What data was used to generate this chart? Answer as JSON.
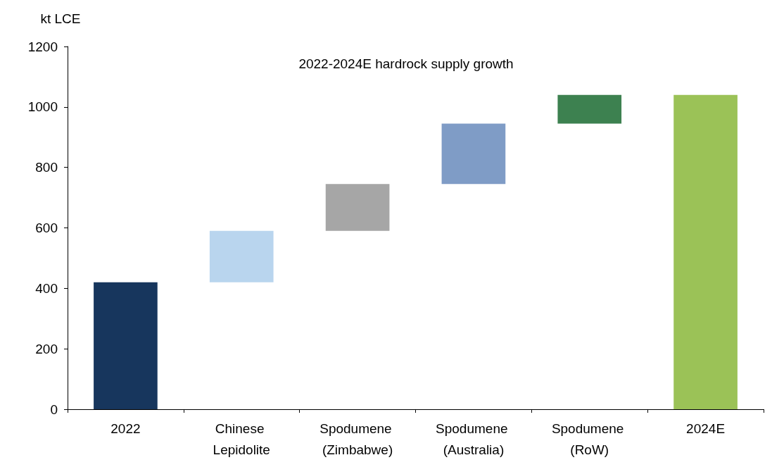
{
  "chart_data": {
    "type": "bar",
    "title": "2022-2024E hardrock supply growth",
    "ylabel": "kt LCE",
    "categories": [
      "2022",
      "Chinese Lepidolite",
      "Spodumene (Zimbabwe)",
      "Spodumene (Australia)",
      "Spodumene (RoW)",
      "2024E"
    ],
    "values": [
      420,
      170,
      155,
      200,
      95,
      1040
    ],
    "base": [
      0,
      420,
      590,
      745,
      945,
      0
    ],
    "colors": [
      "#17365d",
      "#b9d5ee",
      "#a6a6a6",
      "#7f9cc6",
      "#3d8150",
      "#9bc257"
    ],
    "ylim": [
      0,
      1200
    ],
    "yticks": [
      0,
      200,
      400,
      600,
      800,
      1000,
      1200
    ]
  }
}
